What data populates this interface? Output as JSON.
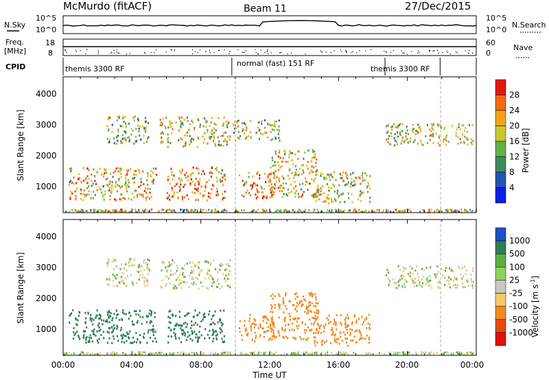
{
  "header": {
    "station": "McMurdo (fitACF)",
    "beam": "Beam 11",
    "date": "27/Dec/2015"
  },
  "noise_panel": {
    "left_label": "N.Sky",
    "right_label": "N.Search",
    "left_ticks": [
      "10^5",
      "10^0"
    ],
    "right_ticks": [
      "10^5",
      "10^0"
    ]
  },
  "freq_panel": {
    "left_label_1": "Freq.",
    "left_label_2": "[MHz]",
    "left_ticks": [
      "18",
      "8"
    ],
    "right_label": "Nave",
    "right_ticks": [
      "60",
      "0"
    ]
  },
  "cpid_panel": {
    "label": "CPID",
    "segments": [
      {
        "text": "themis 3300 RF",
        "start_h": 0.0,
        "end_h": 9.8
      },
      {
        "text": "normal (fast) 151 RF",
        "start_h": 9.8,
        "end_h": 18.7
      },
      {
        "text": "themis 3300 RF",
        "start_h": 18.7,
        "end_h": 21.9
      }
    ]
  },
  "x_axis": {
    "title": "Time UT",
    "ticks": [
      "00:00",
      "04:00",
      "08:00",
      "12:00",
      "16:00",
      "20:00",
      "00:00"
    ]
  },
  "power_panel": {
    "ylabel": "Slant Range [km]",
    "yticks": [
      "1000",
      "2000",
      "3000",
      "4000"
    ],
    "colorbar_title": "Power [dB]",
    "colorbar_ticks": [
      "4",
      "8",
      "12",
      "16",
      "20",
      "24",
      "28"
    ],
    "colors": [
      "#0a1ee8",
      "#2354b4",
      "#3f8a5c",
      "#62b04a",
      "#c6c82e",
      "#f2a21c",
      "#ef6a12",
      "#e01a0a"
    ]
  },
  "velocity_panel": {
    "ylabel": "Slant Range [km]",
    "yticks": [
      "1000",
      "2000",
      "3000",
      "4000"
    ],
    "colorbar_title": "Velocity [m s",
    "colorbar_title_sup": "-1",
    "colorbar_title_end": "]",
    "colorbar_ticks": [
      "1000",
      "500",
      "100",
      "25",
      "-25",
      "-100",
      "-500",
      "-1000"
    ],
    "colors": [
      "#1e50c0",
      "#2f7e54",
      "#5fae43",
      "#8cd25e",
      "#c8c8c2",
      "#f5c86a",
      "#f08c1e",
      "#e54a12",
      "#e01010"
    ]
  },
  "chart_data": {
    "type": "heatmap",
    "x_range_hours": [
      0,
      24
    ],
    "y_range_km": [
      180,
      4500
    ],
    "power_blobs": [
      {
        "t0": 0.3,
        "t1": 5.4,
        "r0": 600,
        "r1": 1650,
        "level": 0.65
      },
      {
        "t0": 2.5,
        "t1": 5.0,
        "r0": 2400,
        "r1": 3300,
        "level": 0.45
      },
      {
        "t0": 5.6,
        "t1": 9.7,
        "r0": 2300,
        "r1": 3250,
        "level": 0.55
      },
      {
        "t0": 6.0,
        "t1": 9.4,
        "r0": 600,
        "r1": 1650,
        "level": 0.75
      },
      {
        "t0": 9.8,
        "t1": 12.6,
        "r0": 2500,
        "r1": 3150,
        "level": 0.5
      },
      {
        "t0": 10.2,
        "t1": 12.3,
        "r0": 650,
        "r1": 1500,
        "level": 0.7
      },
      {
        "t0": 12.0,
        "t1": 14.8,
        "r0": 700,
        "r1": 2200,
        "level": 0.6
      },
      {
        "t0": 14.5,
        "t1": 17.8,
        "r0": 500,
        "r1": 1500,
        "level": 0.55
      },
      {
        "t0": 18.7,
        "t1": 23.8,
        "r0": 2350,
        "r1": 3050,
        "level": 0.55
      }
    ],
    "velocity_blobs": [
      {
        "t0": 0.3,
        "t1": 5.4,
        "r0": 600,
        "r1": 1650,
        "v": 250
      },
      {
        "t0": 2.5,
        "t1": 5.0,
        "r0": 2400,
        "r1": 3300,
        "v": 0
      },
      {
        "t0": 5.6,
        "t1": 9.7,
        "r0": 2300,
        "r1": 3250,
        "v": 0
      },
      {
        "t0": 6.0,
        "t1": 9.4,
        "r0": 600,
        "r1": 1650,
        "v": 300
      },
      {
        "t0": 10.2,
        "t1": 12.3,
        "r0": 650,
        "r1": 1500,
        "v": -300
      },
      {
        "t0": 12.0,
        "t1": 14.8,
        "r0": 700,
        "r1": 2200,
        "v": -300
      },
      {
        "t0": 14.5,
        "t1": 17.8,
        "r0": 500,
        "r1": 1500,
        "v": -300
      },
      {
        "t0": 18.7,
        "t1": 23.8,
        "r0": 2350,
        "r1": 3050,
        "v": 0
      }
    ]
  }
}
